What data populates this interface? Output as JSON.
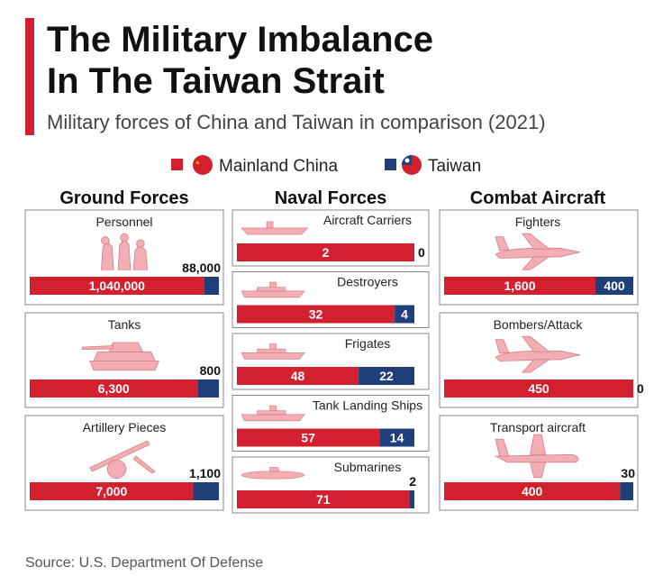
{
  "title": [
    "The Military Imbalance",
    "In The Taiwan Strait"
  ],
  "subtitle": "Military forces of China and Taiwan in comparison (2021)",
  "source": "Source: U.S. Department Of Defense",
  "chart_data": {
    "type": "share-bar",
    "series": [
      {
        "name": "Mainland China",
        "color": "#d3202f"
      },
      {
        "name": "Taiwan",
        "color": "#1f3f7a"
      }
    ],
    "panels": [
      {
        "title": "Ground Forces",
        "items": [
          {
            "label": "Personnel",
            "values": [
              1040000,
              88000
            ],
            "value_labels": [
              "1,040,000",
              "88,000"
            ]
          },
          {
            "label": "Tanks",
            "values": [
              6300,
              800
            ],
            "value_labels": [
              "6,300",
              "800"
            ]
          },
          {
            "label": "Artillery Pieces",
            "values": [
              7000,
              1100
            ],
            "value_labels": [
              "7,000",
              "1,100"
            ]
          }
        ]
      },
      {
        "title": "Naval Forces",
        "items": [
          {
            "label": "Aircraft Carriers",
            "values": [
              2,
              0
            ]
          },
          {
            "label": "Destroyers",
            "values": [
              32,
              4
            ]
          },
          {
            "label": "Frigates",
            "values": [
              48,
              22
            ]
          },
          {
            "label": "Tank Landing Ships",
            "values": [
              57,
              14
            ]
          },
          {
            "label": "Submarines",
            "values": [
              71,
              2
            ]
          }
        ]
      },
      {
        "title": "Combat Aircraft",
        "items": [
          {
            "label": "Fighters",
            "values": [
              1600,
              400
            ],
            "value_labels": [
              "1,600",
              "400"
            ]
          },
          {
            "label": "Bombers/Attack",
            "values": [
              450,
              0
            ]
          },
          {
            "label": "Transport aircraft",
            "values": [
              400,
              30
            ]
          }
        ]
      }
    ]
  }
}
